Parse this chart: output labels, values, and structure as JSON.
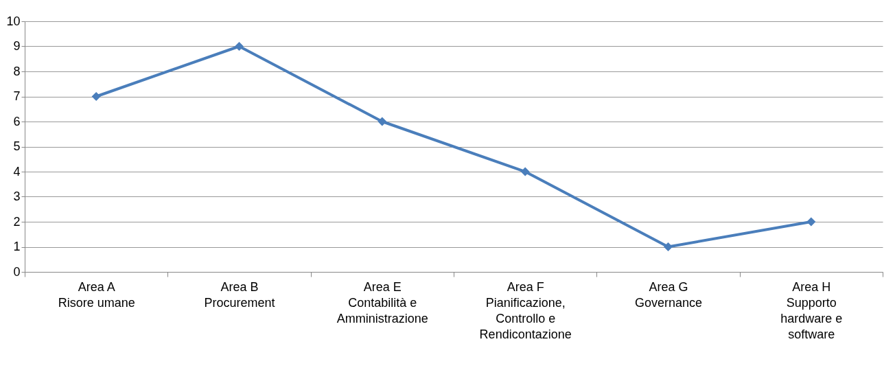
{
  "chart_data": {
    "type": "line",
    "categories": [
      "Area A\nRisore umane",
      "Area B\nProcurement",
      "Area E\nContabilità e\nAmministrazione",
      "Area F\nPianificazione,\nControllo e\nRendicontazione",
      "Area G\nGovernance",
      "Area H\nSupporto\nhardware e\nsoftware"
    ],
    "series": [
      {
        "color": "#4a7ebb",
        "values": [
          7,
          9,
          6,
          4,
          1,
          2
        ]
      }
    ],
    "ylim": [
      0,
      10
    ],
    "yticks": [
      0,
      1,
      2,
      3,
      4,
      5,
      6,
      7,
      8,
      9,
      10
    ],
    "grid": "y",
    "legend": false,
    "marker": "diamond",
    "line_style": "solid"
  }
}
